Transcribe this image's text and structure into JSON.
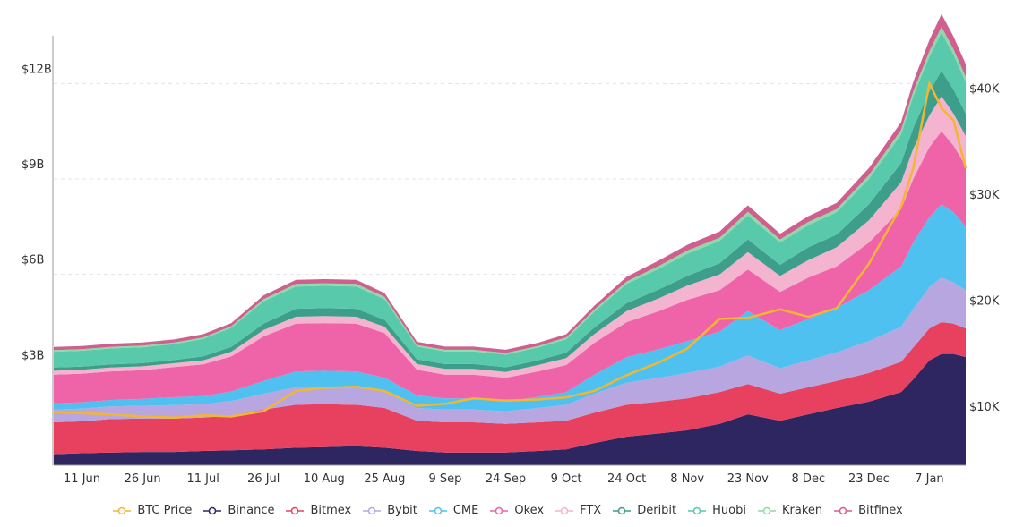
{
  "chart_data": {
    "type": "area",
    "stacked": true,
    "title": "",
    "xlabel": "",
    "ylabel": "",
    "y_left": {
      "min": 0,
      "max": 13500000000,
      "ticks": [
        3000000000,
        6000000000,
        9000000000,
        12000000000
      ],
      "tick_labels": [
        "$3B",
        "$6B",
        "$9B",
        "$12B"
      ]
    },
    "y_right": {
      "min": 4500,
      "max": 45000,
      "ticks": [
        10000,
        20000,
        30000,
        40000
      ],
      "tick_labels": [
        "$10K",
        "$20K",
        "$30K",
        "$40K"
      ]
    },
    "grid": true,
    "x_labels": [
      "11 Jun",
      "26 Jun",
      "11 Jul",
      "26 Jul",
      "10 Aug",
      "25 Aug",
      "9 Sep",
      "24 Sep",
      "9 Oct",
      "24 Oct",
      "8 Nov",
      "23 Nov",
      "8 Dec",
      "23 Dec",
      "7 Jan"
    ],
    "x": [
      "2020-06-04",
      "2020-06-11",
      "2020-06-18",
      "2020-06-26",
      "2020-07-04",
      "2020-07-11",
      "2020-07-18",
      "2020-07-26",
      "2020-08-03",
      "2020-08-10",
      "2020-08-18",
      "2020-08-25",
      "2020-09-02",
      "2020-09-09",
      "2020-09-16",
      "2020-09-24",
      "2020-10-02",
      "2020-10-09",
      "2020-10-16",
      "2020-10-24",
      "2020-11-01",
      "2020-11-08",
      "2020-11-16",
      "2020-11-23",
      "2020-12-01",
      "2020-12-08",
      "2020-12-15",
      "2020-12-23",
      "2020-12-31",
      "2021-01-03",
      "2021-01-07",
      "2021-01-10",
      "2021-01-13",
      "2021-01-16"
    ],
    "series": [
      {
        "name": "Binance",
        "color": "#2d2660",
        "values": [
          0.35,
          0.38,
          0.4,
          0.42,
          0.42,
          0.45,
          0.47,
          0.5,
          0.55,
          0.57,
          0.6,
          0.55,
          0.45,
          0.4,
          0.4,
          0.4,
          0.45,
          0.5,
          0.7,
          0.9,
          1.0,
          1.1,
          1.3,
          1.6,
          1.4,
          1.6,
          1.8,
          2.0,
          2.3,
          2.7,
          3.3,
          3.5,
          3.5,
          3.4
        ]
      },
      {
        "name": "Bitmex",
        "color": "#e8405f",
        "values": [
          1.0,
          1.0,
          1.05,
          1.05,
          1.05,
          1.05,
          1.1,
          1.25,
          1.35,
          1.35,
          1.3,
          1.25,
          0.95,
          0.95,
          0.95,
          0.9,
          0.9,
          0.9,
          0.95,
          1.0,
          1.0,
          1.0,
          1.0,
          0.95,
          0.85,
          0.85,
          0.85,
          0.9,
          0.95,
          1.0,
          1.0,
          1.0,
          0.95,
          0.9
        ]
      },
      {
        "name": "Bybit",
        "color": "#b7a6e0",
        "values": [
          0.4,
          0.4,
          0.4,
          0.4,
          0.42,
          0.42,
          0.45,
          0.5,
          0.55,
          0.55,
          0.55,
          0.5,
          0.4,
          0.4,
          0.4,
          0.4,
          0.45,
          0.5,
          0.6,
          0.7,
          0.75,
          0.8,
          0.8,
          0.9,
          0.8,
          0.85,
          0.9,
          1.0,
          1.1,
          1.2,
          1.3,
          1.4,
          1.3,
          1.2
        ]
      },
      {
        "name": "CME",
        "color": "#4ec1f0",
        "values": [
          0.2,
          0.2,
          0.2,
          0.22,
          0.25,
          0.25,
          0.3,
          0.4,
          0.5,
          0.5,
          0.5,
          0.45,
          0.4,
          0.35,
          0.35,
          0.3,
          0.35,
          0.4,
          0.6,
          0.8,
          0.9,
          1.0,
          1.1,
          1.4,
          1.2,
          1.3,
          1.4,
          1.6,
          1.9,
          2.1,
          2.2,
          2.3,
          2.2,
          2.0
        ]
      },
      {
        "name": "Okex",
        "color": "#ef64a8",
        "values": [
          0.9,
          0.9,
          0.9,
          0.9,
          0.95,
          1.0,
          1.1,
          1.4,
          1.5,
          1.5,
          1.5,
          1.4,
          0.8,
          0.75,
          0.75,
          0.75,
          0.8,
          0.85,
          1.0,
          1.1,
          1.2,
          1.3,
          1.3,
          1.3,
          1.2,
          1.3,
          1.3,
          1.5,
          1.8,
          2.0,
          2.2,
          2.3,
          2.1,
          1.9
        ]
      },
      {
        "name": "FTX",
        "color": "#f4b3ce",
        "values": [
          0.12,
          0.12,
          0.12,
          0.12,
          0.12,
          0.13,
          0.15,
          0.2,
          0.22,
          0.22,
          0.22,
          0.2,
          0.18,
          0.18,
          0.18,
          0.18,
          0.2,
          0.22,
          0.28,
          0.35,
          0.4,
          0.45,
          0.5,
          0.55,
          0.5,
          0.55,
          0.6,
          0.7,
          0.85,
          0.95,
          1.0,
          1.1,
          1.0,
          0.95
        ]
      },
      {
        "name": "Deribit",
        "color": "#3c9e8b",
        "values": [
          0.1,
          0.1,
          0.1,
          0.1,
          0.1,
          0.12,
          0.15,
          0.2,
          0.25,
          0.25,
          0.25,
          0.22,
          0.15,
          0.15,
          0.15,
          0.15,
          0.15,
          0.17,
          0.2,
          0.25,
          0.28,
          0.3,
          0.35,
          0.4,
          0.35,
          0.4,
          0.4,
          0.5,
          0.6,
          0.65,
          0.75,
          0.8,
          0.75,
          0.7
        ]
      },
      {
        "name": "Huobi",
        "color": "#58c9aa",
        "values": [
          0.5,
          0.5,
          0.5,
          0.5,
          0.5,
          0.55,
          0.6,
          0.7,
          0.7,
          0.7,
          0.7,
          0.65,
          0.4,
          0.4,
          0.4,
          0.4,
          0.4,
          0.42,
          0.5,
          0.6,
          0.65,
          0.7,
          0.7,
          0.75,
          0.7,
          0.7,
          0.7,
          0.8,
          0.9,
          1.0,
          1.1,
          1.2,
          1.1,
          1.0
        ]
      },
      {
        "name": "Kraken",
        "color": "#8fd9a8",
        "values": [
          0.05,
          0.05,
          0.05,
          0.05,
          0.05,
          0.05,
          0.05,
          0.07,
          0.08,
          0.08,
          0.08,
          0.07,
          0.05,
          0.05,
          0.05,
          0.05,
          0.05,
          0.06,
          0.07,
          0.08,
          0.09,
          0.1,
          0.1,
          0.12,
          0.1,
          0.1,
          0.1,
          0.12,
          0.14,
          0.15,
          0.17,
          0.18,
          0.17,
          0.16
        ]
      },
      {
        "name": "Bitfinex",
        "color": "#cf5f8e",
        "values": [
          0.1,
          0.1,
          0.1,
          0.1,
          0.1,
          0.1,
          0.1,
          0.12,
          0.13,
          0.13,
          0.13,
          0.12,
          0.1,
          0.1,
          0.1,
          0.1,
          0.1,
          0.1,
          0.12,
          0.15,
          0.17,
          0.18,
          0.2,
          0.2,
          0.18,
          0.18,
          0.2,
          0.22,
          0.25,
          0.3,
          0.35,
          0.4,
          0.4,
          0.4
        ]
      }
    ],
    "line_series": {
      "name": "BTC Price",
      "color": "#f2b634",
      "values": [
        9500,
        9400,
        9300,
        9100,
        9000,
        9200,
        9100,
        9600,
        11500,
        11800,
        11900,
        11500,
        10100,
        10300,
        10800,
        10600,
        10700,
        10900,
        11500,
        13000,
        14200,
        15500,
        18300,
        18400,
        19200,
        18500,
        19300,
        23500,
        28900,
        32500,
        40500,
        38200,
        37000,
        32500
      ]
    },
    "legend": {
      "placement": "bottom"
    }
  }
}
